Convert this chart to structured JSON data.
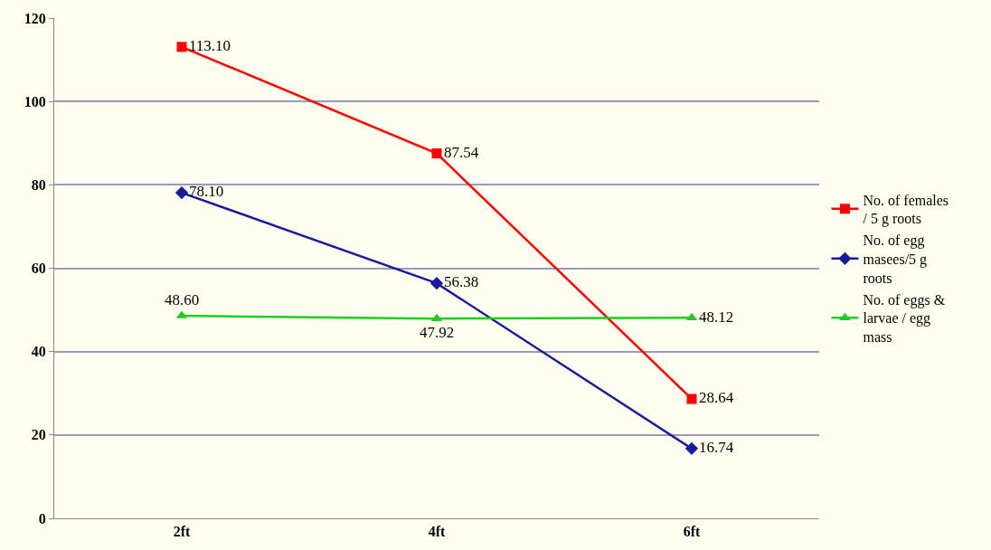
{
  "chart_data": {
    "type": "line",
    "categories": [
      "2ft",
      "4ft",
      "6ft"
    ],
    "ylim": [
      0,
      120
    ],
    "yticks": [
      0,
      20,
      40,
      60,
      80,
      100,
      120
    ],
    "grid": "y",
    "legend": "right",
    "series": [
      {
        "name": "No. of females / 5 g roots",
        "color": "#ff0000",
        "marker": "square",
        "values": [
          113.1,
          87.54,
          28.64
        ],
        "value_labels": [
          "113.10",
          "87.54",
          "28.64"
        ]
      },
      {
        "name": "No. of egg masees/5 g roots",
        "color": "#1a1a9c",
        "marker": "diamond",
        "values": [
          78.1,
          56.38,
          16.74
        ],
        "value_labels": [
          "78.10",
          "56.38",
          "16.74"
        ]
      },
      {
        "name": "No. of eggs & larvae / egg mass",
        "color": "#22cc22",
        "marker": "triangle",
        "values": [
          48.6,
          47.92,
          48.12
        ],
        "value_labels": [
          "48.60",
          "47.92",
          "48.12"
        ]
      }
    ]
  }
}
